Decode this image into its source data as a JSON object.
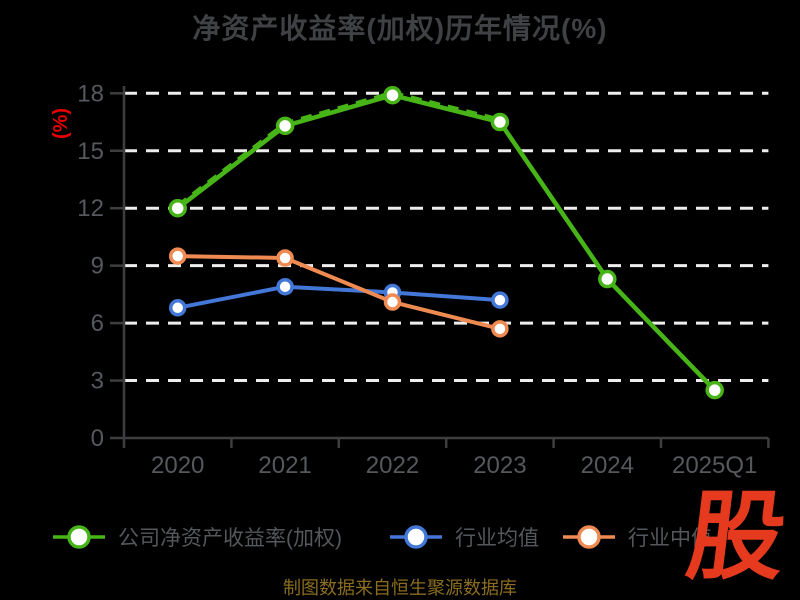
{
  "title": "净资产收益率(加权)历年情况(%)",
  "y_axis_name": "(%)",
  "footer": "制图数据来自恒生聚源数据库",
  "watermark": "股",
  "colors": {
    "background": "#000000",
    "title": "#3f4144",
    "axis_line": "#3e3e40",
    "axis_label": "#55585c",
    "gridline": "#eeeeee",
    "legend_label": "#54575b",
    "footer": "#8a6d1f",
    "y_axis_name_red": "#e80000",
    "watermark_red": "#e53a1d",
    "series_company": "#47b517",
    "series_industry_avg": "#4377d8",
    "series_industry_median": "#ef8b52"
  },
  "chart_data": {
    "type": "line",
    "title": "净资产收益率(加权)历年情况(%)",
    "ylabel": "(%)",
    "x": [
      "2020",
      "2021",
      "2022",
      "2023",
      "2024",
      "2025Q1"
    ],
    "series": [
      {
        "name": "公司净资产收益率(加权)",
        "color": "#47b517",
        "values": [
          12.0,
          16.3,
          17.9,
          16.5,
          8.3,
          2.5
        ]
      },
      {
        "name": "行业均值",
        "color": "#4377d8",
        "values": [
          6.8,
          7.9,
          7.6,
          7.2,
          null,
          null
        ]
      },
      {
        "name": "行业中值",
        "color": "#ef8b52",
        "values": [
          9.5,
          9.4,
          7.1,
          5.7,
          null,
          null
        ]
      }
    ],
    "overlay_dashed": {
      "series_index": 0,
      "points": 4,
      "value_offset": 0.14
    },
    "ylim": [
      0,
      18
    ],
    "ytick_step": 3,
    "grid": "horizontal-dashed-white",
    "legend_position": "bottom",
    "markers": "white-filled-circles"
  }
}
